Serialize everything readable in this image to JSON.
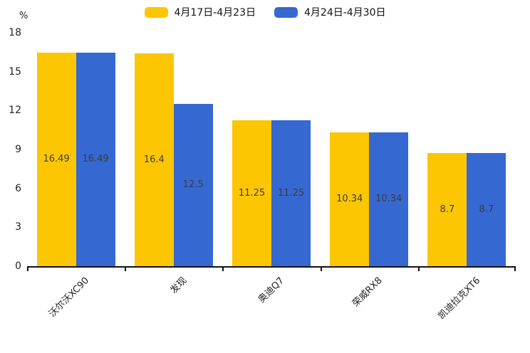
{
  "axis": {
    "unit_label": "%"
  },
  "chart_data": {
    "type": "bar",
    "title": "",
    "categories": [
      "沃尔沃XC90",
      "发现",
      "奥迪Q7",
      "荣威RX8",
      "凯迪拉克XT6"
    ],
    "series": [
      {
        "name": "4月17日-4月23日",
        "color": "#FCC603",
        "values": [
          16.49,
          16.4,
          11.25,
          10.34,
          8.7
        ]
      },
      {
        "name": "4月24日-4月30日",
        "color": "#3568D1",
        "values": [
          16.49,
          12.5,
          11.25,
          10.34,
          8.7
        ]
      }
    ],
    "value_labels": [
      [
        "16.49",
        "16.4",
        "11.25",
        "10.34",
        "8.7"
      ],
      [
        "16.49",
        "12.5",
        "11.25",
        "10.34",
        "8.7"
      ]
    ],
    "xlabel": "",
    "ylabel": "%",
    "ylim": [
      0,
      18
    ],
    "yticks": [
      0,
      3,
      6,
      9,
      12,
      15,
      18
    ],
    "grid": false,
    "legend_position": "top",
    "bar_label_position": "center-inside"
  }
}
